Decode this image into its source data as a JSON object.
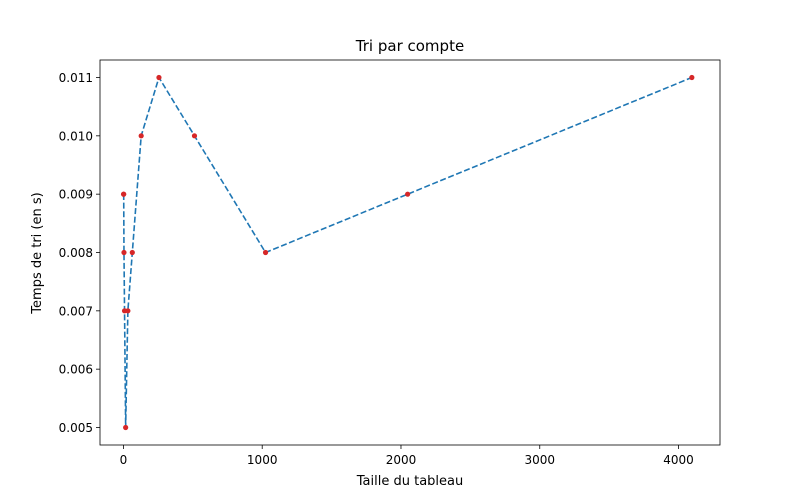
{
  "chart_data": {
    "type": "line",
    "title": "Tri par compte",
    "xlabel": "Taille du tableau",
    "ylabel": "Temps de tri (en s)",
    "xlim": [
      -168.8,
      4298.8
    ],
    "ylim": [
      0.0047,
      0.0113
    ],
    "xticks": [
      0,
      1000,
      2000,
      3000,
      4000
    ],
    "xtick_labels": [
      "0",
      "1000",
      "2000",
      "3000",
      "4000"
    ],
    "yticks": [
      0.005,
      0.006,
      0.007,
      0.008,
      0.009,
      0.01,
      0.011
    ],
    "ytick_labels": [
      "0.005",
      "0.006",
      "0.007",
      "0.008",
      "0.009",
      "0.010",
      "0.011"
    ],
    "grid": false,
    "series": [
      {
        "x": [
          1,
          2,
          4,
          8,
          16,
          32,
          64,
          128,
          256,
          512,
          1024,
          2048,
          4096
        ],
        "y": [
          0.009,
          0.009,
          0.008,
          0.007,
          0.005,
          0.007,
          0.008,
          0.01,
          0.011,
          0.01,
          0.008,
          0.009,
          0.011
        ],
        "line_style": "dashed",
        "line_color": "#1f77b4",
        "marker_color": "#d62728"
      }
    ]
  }
}
